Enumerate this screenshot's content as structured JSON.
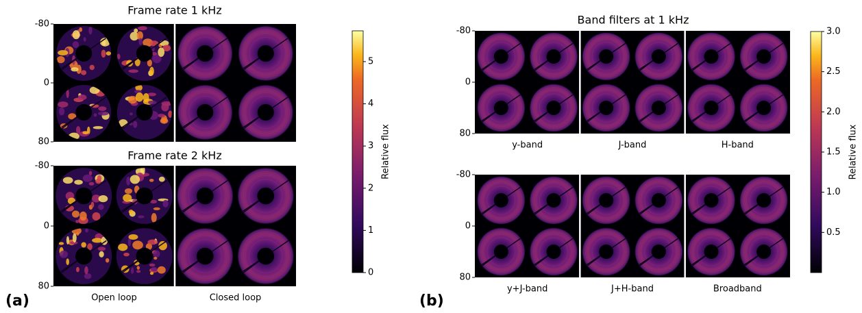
{
  "panels": [
    {
      "label": "(a)",
      "colorbar": {
        "label": "Relative flux",
        "lim": [
          0,
          5.73
        ],
        "ticks": [
          0,
          1,
          2,
          3,
          4,
          5
        ]
      },
      "columns": [
        "Open loop",
        "Closed loop"
      ],
      "plots": [
        {
          "title": "Frame rate 1 kHz",
          "ylim": [
            -80,
            80
          ],
          "yticks": [
            -80,
            0,
            80
          ]
        },
        {
          "title": "Frame rate 2 kHz",
          "ylim": [
            -80,
            80
          ],
          "yticks": [
            -80,
            0,
            80
          ]
        }
      ]
    },
    {
      "label": "(b)",
      "title": "Band filters at 1 kHz",
      "colorbar": {
        "label": "Relative flux",
        "lim": [
          0,
          3
        ],
        "ticks": [
          0.5,
          {
            "value": 1,
            "label": "1.0"
          },
          1.5,
          {
            "value": 2,
            "label": "2.0"
          },
          2.5,
          {
            "value": 3,
            "label": "3.0"
          }
        ]
      },
      "plots": [
        {
          "columns": [
            "y-band",
            "J-band",
            "H-band"
          ],
          "ylim": [
            -80,
            80
          ],
          "yticks": [
            -80,
            0,
            80
          ]
        },
        {
          "columns": [
            "y+J-band",
            "J+H-band",
            "Broadband"
          ],
          "ylim": [
            -80,
            80
          ],
          "yticks": [
            -80,
            0,
            80
          ]
        }
      ]
    }
  ]
}
